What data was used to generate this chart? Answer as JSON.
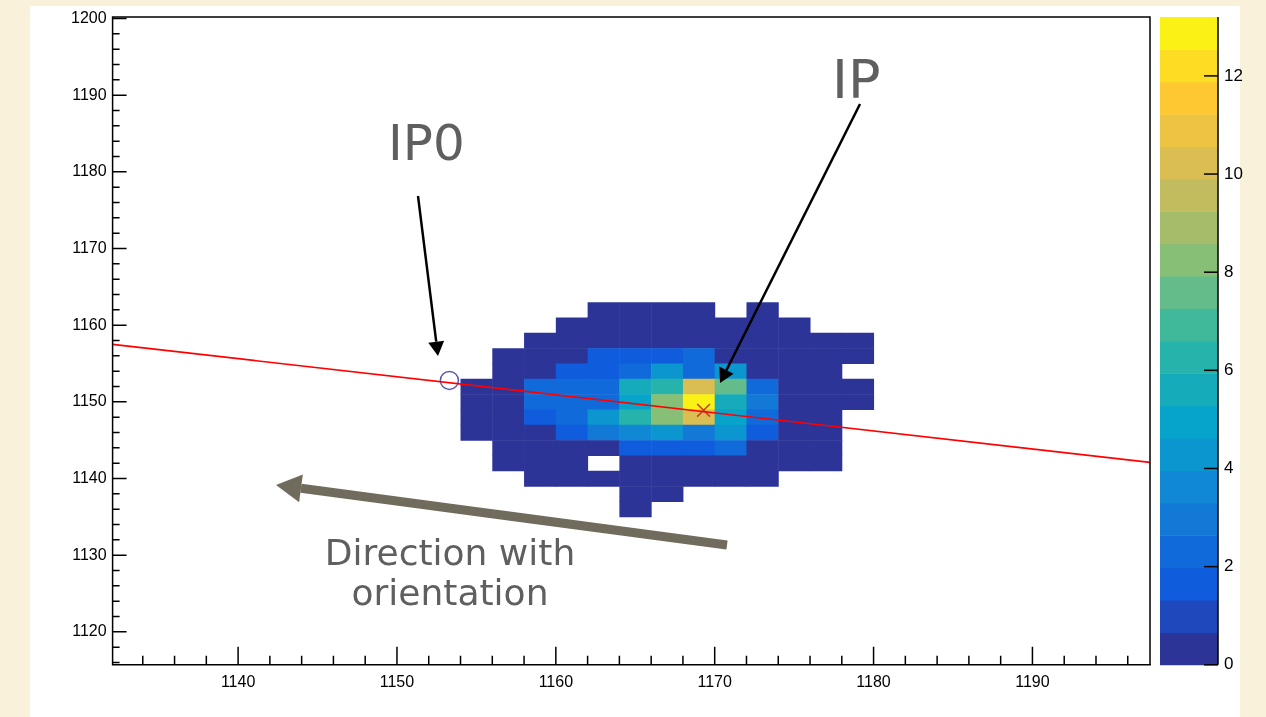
{
  "chart_data": {
    "type": "heatmap",
    "x": [
      1155,
      1157,
      1159,
      1161,
      1163,
      1165,
      1167,
      1169,
      1171,
      1173,
      1175,
      1177,
      1179
    ],
    "y": [
      1162,
      1160,
      1158,
      1156,
      1154,
      1152,
      1150,
      1148,
      1146,
      1144,
      1142,
      1140,
      1138,
      1136
    ],
    "cells": [
      [
        null,
        null,
        null,
        null,
        0.5,
        0.5,
        0.5,
        0.5,
        null,
        0.5,
        null,
        null,
        null
      ],
      [
        null,
        null,
        null,
        0.5,
        0.5,
        0.5,
        0.5,
        0.5,
        0.5,
        0.5,
        0.5,
        null,
        null
      ],
      [
        null,
        null,
        0.5,
        0.5,
        0.5,
        0.5,
        0.5,
        0.5,
        0.5,
        0.5,
        0.5,
        0.5,
        0.5
      ],
      [
        null,
        0.5,
        0.5,
        0.5,
        1.5,
        1.5,
        1.5,
        2,
        0.5,
        0.5,
        0.5,
        0.5,
        0.5
      ],
      [
        null,
        0.5,
        0.5,
        1.5,
        1.5,
        2.5,
        4,
        2,
        4,
        0.5,
        0.5,
        0.5,
        null
      ],
      [
        0.5,
        0.5,
        2,
        2,
        2,
        5.5,
        6,
        10.5,
        7.5,
        2,
        0.5,
        0.5,
        0.5
      ],
      [
        0.5,
        0.5,
        2,
        2,
        2.5,
        5,
        8,
        13,
        5.5,
        3,
        0.5,
        0.5,
        0.5
      ],
      [
        0.5,
        0.5,
        1.5,
        2.5,
        4.5,
        6,
        8.5,
        10.5,
        5,
        2.5,
        0.5,
        0.5,
        null
      ],
      [
        0.5,
        0.5,
        0.5,
        1.5,
        3,
        3.5,
        4,
        3,
        4,
        1.5,
        0.5,
        0.5,
        null
      ],
      [
        null,
        0.5,
        0.5,
        0.5,
        0.5,
        1.5,
        1.5,
        1.5,
        2,
        0.5,
        0.5,
        0.5,
        null
      ],
      [
        null,
        0.5,
        0.5,
        0.5,
        null,
        0.5,
        0.5,
        0.5,
        0.5,
        0.5,
        0.5,
        0.5,
        null
      ],
      [
        null,
        null,
        0.5,
        0.5,
        0.5,
        0.5,
        0.5,
        0.5,
        0.5,
        0.5,
        null,
        null,
        null
      ],
      [
        null,
        null,
        null,
        null,
        null,
        0.5,
        0.5,
        null,
        null,
        null,
        null,
        null,
        null
      ],
      [
        null,
        null,
        null,
        null,
        null,
        0.5,
        null,
        null,
        null,
        null,
        null,
        null,
        null
      ]
    ],
    "clim": [
      0,
      13.2
    ],
    "cticks": [
      0,
      2,
      4,
      6,
      8,
      10,
      12
    ],
    "series": [
      {
        "type": "line",
        "x": [
          1132.1,
          1197.4
        ],
        "values": [
          1157.5,
          1142.1
        ],
        "color": "#ff0000",
        "line_style": "solid"
      },
      {
        "type": "scatter",
        "x": [
          1153.3
        ],
        "values": [
          1152.8
        ],
        "color": "#5a5ab4",
        "marker": "circle"
      },
      {
        "type": "scatter",
        "x": [
          1169.3
        ],
        "values": [
          1148.9
        ],
        "color": "#c83c28",
        "marker": "cross"
      }
    ],
    "xlim": [
      1132.1,
      1197.4
    ],
    "xticks": [
      {
        "value": 1134,
        "label": null
      },
      {
        "value": 1136,
        "label": null
      },
      {
        "value": 1138,
        "label": null
      },
      1140,
      {
        "value": 1142,
        "label": null
      },
      {
        "value": 1144,
        "label": null
      },
      {
        "value": 1146,
        "label": null
      },
      {
        "value": 1148,
        "label": null
      },
      1150,
      {
        "value": 1152,
        "label": null
      },
      {
        "value": 1154,
        "label": null
      },
      {
        "value": 1156,
        "label": null
      },
      {
        "value": 1158,
        "label": null
      },
      1160,
      {
        "value": 1162,
        "label": null
      },
      {
        "value": 1164,
        "label": null
      },
      {
        "value": 1166,
        "label": null
      },
      {
        "value": 1168,
        "label": null
      },
      1170,
      {
        "value": 1172,
        "label": null
      },
      {
        "value": 1174,
        "label": null
      },
      {
        "value": 1176,
        "label": null
      },
      {
        "value": 1178,
        "label": null
      },
      1180,
      {
        "value": 1182,
        "label": null
      },
      {
        "value": 1184,
        "label": null
      },
      {
        "value": 1186,
        "label": null
      },
      {
        "value": 1188,
        "label": null
      },
      1190,
      {
        "value": 1192,
        "label": null
      },
      {
        "value": 1194,
        "label": null
      },
      {
        "value": 1196,
        "label": null
      }
    ],
    "ylim": [
      1115.7,
      1200.2
    ],
    "yticks": [
      {
        "value": 1116,
        "label": null
      },
      {
        "value": 1118,
        "label": null
      },
      1120,
      {
        "value": 1122,
        "label": null
      },
      {
        "value": 1124,
        "label": null
      },
      {
        "value": 1126,
        "label": null
      },
      {
        "value": 1128,
        "label": null
      },
      1130,
      {
        "value": 1132,
        "label": null
      },
      {
        "value": 1134,
        "label": null
      },
      {
        "value": 1136,
        "label": null
      },
      {
        "value": 1138,
        "label": null
      },
      1140,
      {
        "value": 1142,
        "label": null
      },
      {
        "value": 1144,
        "label": null
      },
      {
        "value": 1146,
        "label": null
      },
      {
        "value": 1148,
        "label": null
      },
      1150,
      {
        "value": 1152,
        "label": null
      },
      {
        "value": 1154,
        "label": null
      },
      {
        "value": 1156,
        "label": null
      },
      {
        "value": 1158,
        "label": null
      },
      1160,
      {
        "value": 1162,
        "label": null
      },
      {
        "value": 1164,
        "label": null
      },
      {
        "value": 1166,
        "label": null
      },
      {
        "value": 1168,
        "label": null
      },
      1170,
      {
        "value": 1172,
        "label": null
      },
      {
        "value": 1174,
        "label": null
      },
      {
        "value": 1176,
        "label": null
      },
      {
        "value": 1178,
        "label": null
      },
      1180,
      {
        "value": 1182,
        "label": null
      },
      {
        "value": 1184,
        "label": null
      },
      {
        "value": 1186,
        "label": null
      },
      {
        "value": 1188,
        "label": null
      },
      1190,
      {
        "value": 1192,
        "label": null
      },
      {
        "value": 1194,
        "label": null
      },
      {
        "value": 1196,
        "label": null
      },
      {
        "value": 1198,
        "label": null
      },
      1200
    ],
    "annotations": [
      "IP0",
      "IP",
      "Direction with orientation"
    ]
  }
}
